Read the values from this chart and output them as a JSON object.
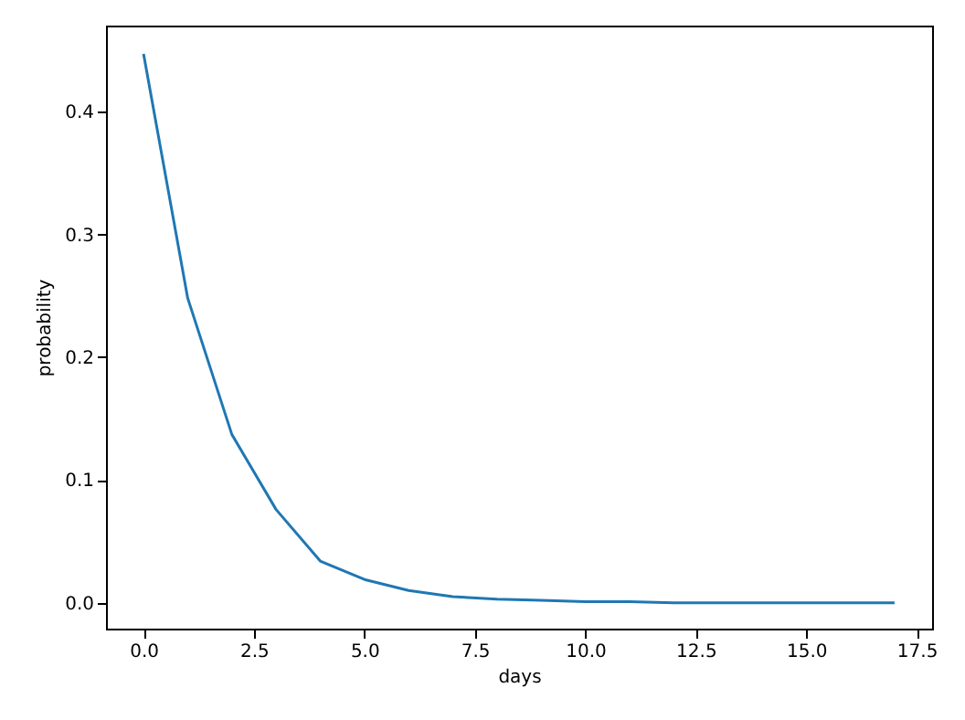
{
  "chart_data": {
    "type": "line",
    "xlabel": "days",
    "ylabel": "probability",
    "x": [
      0,
      1,
      2,
      3,
      4,
      5,
      6,
      7,
      8,
      9,
      10,
      11,
      12,
      13,
      14,
      15,
      16,
      17
    ],
    "series": [
      {
        "color": "#1f77b4",
        "values": [
          0.447,
          0.248,
          0.137,
          0.076,
          0.034,
          0.019,
          0.01,
          0.005,
          0.003,
          0.002,
          0.001,
          0.001,
          0.0,
          0.0,
          0.0,
          0.0,
          0.0,
          0.0
        ]
      }
    ],
    "xlim": [
      -0.85,
      17.85
    ],
    "ylim": [
      -0.021,
      0.47
    ],
    "xticks": [
      {
        "value": 0,
        "label": "0.0"
      },
      {
        "value": 2.5,
        "label": "2.5"
      },
      {
        "value": 5,
        "label": "5.0"
      },
      {
        "value": 7.5,
        "label": "7.5"
      },
      {
        "value": 10,
        "label": "10.0"
      },
      {
        "value": 12.5,
        "label": "12.5"
      },
      {
        "value": 15,
        "label": "15.0"
      },
      {
        "value": 17.5,
        "label": "17.5"
      }
    ],
    "yticks": [
      {
        "value": 0,
        "label": "0.0"
      },
      {
        "value": 0.1,
        "label": "0.1"
      },
      {
        "value": 0.2,
        "label": "0.2"
      },
      {
        "value": 0.3,
        "label": "0.3"
      },
      {
        "value": 0.4,
        "label": "0.4"
      }
    ],
    "grid": false,
    "marker": "none",
    "line_style": "solid"
  }
}
